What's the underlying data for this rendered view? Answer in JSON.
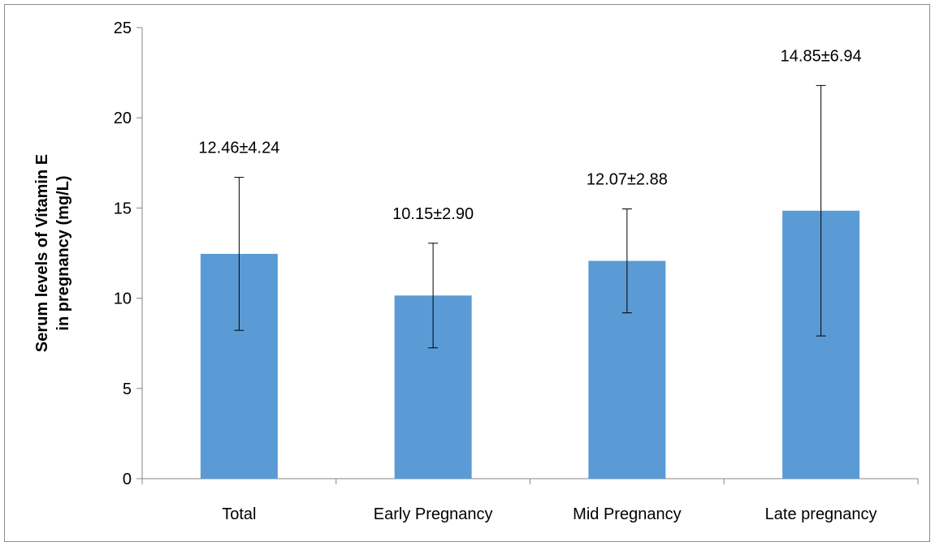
{
  "chart_data": {
    "type": "bar",
    "title": "",
    "xlabel": "",
    "ylabel_lines": [
      "Serum levels of Vitamin E",
      "in pregnancy (mg/L)"
    ],
    "categories": [
      "Total",
      "Early Pregnancy",
      "Mid Pregnancy",
      "Late pregnancy"
    ],
    "values": [
      12.46,
      10.15,
      12.07,
      14.85
    ],
    "errors": [
      4.24,
      2.9,
      2.88,
      6.94
    ],
    "data_labels": [
      "12.46±4.24",
      "10.15±2.90",
      "12.07±2.88",
      "14.85±6.94"
    ],
    "ylim": [
      0,
      25
    ],
    "yticks": [
      0,
      5,
      10,
      15,
      20,
      25
    ],
    "grid": false,
    "legend": "none",
    "bar_color": "#5B9BD5",
    "axis_color": "#868686"
  }
}
